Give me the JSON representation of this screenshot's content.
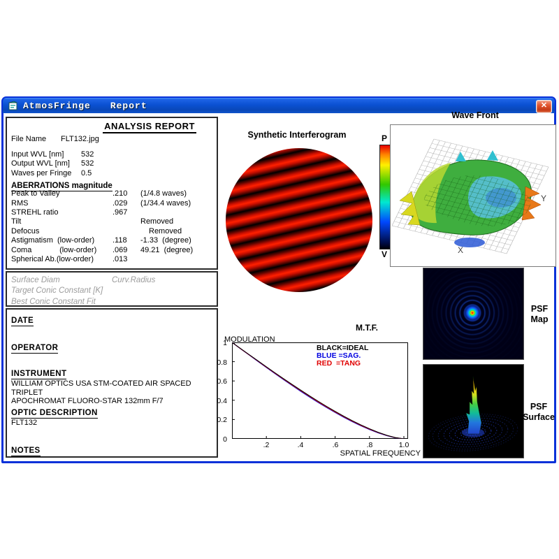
{
  "window": {
    "title_app": "AtmosFringe",
    "title_doc": "Report",
    "close_label": "X"
  },
  "report": {
    "heading": "ANALYSIS  REPORT",
    "file": {
      "label": "File Name",
      "value": "FLT132.jpg"
    },
    "params": [
      {
        "label": "Input  WVL [nm]",
        "value": "532"
      },
      {
        "label": "Output WVL [nm]",
        "value": "532"
      },
      {
        "label": "Waves per Fringe",
        "value": "0.5"
      }
    ],
    "aberrations_heading": "ABERRATIONS magnitude",
    "aberrations": [
      {
        "label": "Peak to Valley",
        "value": ".210",
        "extra": "(1/4.8 waves)"
      },
      {
        "label": "RMS",
        "value": ".029",
        "extra": "(1/34.4 waves)"
      },
      {
        "label": "STREHL ratio",
        "value": ".967",
        "extra": ""
      },
      {
        "label": "Tilt",
        "value": "",
        "extra": "Removed"
      },
      {
        "label": "Defocus",
        "value": "",
        "extra": "Removed"
      },
      {
        "label": "Astigmatism  (low-order)",
        "value": ".118",
        "extra": "-1.33  (degree)"
      },
      {
        "label": "Coma             (low-order)",
        "value": ".069",
        "extra": "49.21  (degree)"
      },
      {
        "label": "Spherical Ab.(low-order)",
        "value": ".013",
        "extra": ""
      }
    ],
    "conic": {
      "surface_diam": "Surface Diam",
      "curv_radius": "Curv.Radius",
      "target_conic": "Target Conic Constant [K]",
      "best_fit": "Best Conic Constant Fit"
    },
    "meta": {
      "date_label": "DATE",
      "operator_label": "OPERATOR",
      "instrument_label": "INSTRUMENT",
      "instrument_line1": "WILLIAM OPTICS USA STM-COATED AIR SPACED TRIPLET",
      "instrument_line2": "APOCHROMAT FLUORO-STAR 132mm F/7",
      "optic_label": "OPTIC DESCRIPTION",
      "optic_value": "FLT132",
      "notes_label": "NOTES"
    }
  },
  "interferogram": {
    "title": "Synthetic Interferogram"
  },
  "colorbar": {
    "top": "P",
    "bottom": "V"
  },
  "wavefront": {
    "title": "Wave Front",
    "xlabel": "X",
    "ylabel": "Y"
  },
  "psf": {
    "map_line1": "PSF",
    "map_line2": "Map",
    "surf_line1": "PSF",
    "surf_line2": "Surface"
  },
  "mtf": {
    "title": "M.T.F.",
    "ylabel": "MODULATION",
    "xlabel": "SPATIAL FREQUENCY",
    "legend": [
      {
        "text": "BLACK=IDEAL",
        "color": "#000000"
      },
      {
        "text": "BLUE =SAG.",
        "color": "#0000e0"
      },
      {
        "text": "RED  =TANG",
        "color": "#e00000"
      }
    ],
    "yticks": [
      "1",
      "0.8",
      "0.6",
      "0.4",
      "0.2",
      "0"
    ],
    "xticks": [
      ".2",
      ".4",
      ".6",
      ".8",
      "1.0"
    ],
    "curve": {
      "x": [
        0,
        0.05,
        0.1,
        0.15,
        0.2,
        0.25,
        0.3,
        0.35,
        0.4,
        0.45,
        0.5,
        0.55,
        0.6,
        0.65,
        0.7,
        0.75,
        0.8,
        0.85,
        0.9,
        0.95,
        1.0
      ],
      "ideal": [
        1.0,
        0.936,
        0.873,
        0.81,
        0.747,
        0.685,
        0.624,
        0.564,
        0.505,
        0.447,
        0.391,
        0.337,
        0.285,
        0.235,
        0.188,
        0.144,
        0.104,
        0.068,
        0.037,
        0.013,
        0.0
      ]
    }
  },
  "colors": {
    "titlebar_blue": "#0b51d2",
    "window_border": "#0831d9",
    "close_red": "#c63c17",
    "fringe_red": "#c80e00",
    "gray_italic": "#9c9c9c"
  }
}
